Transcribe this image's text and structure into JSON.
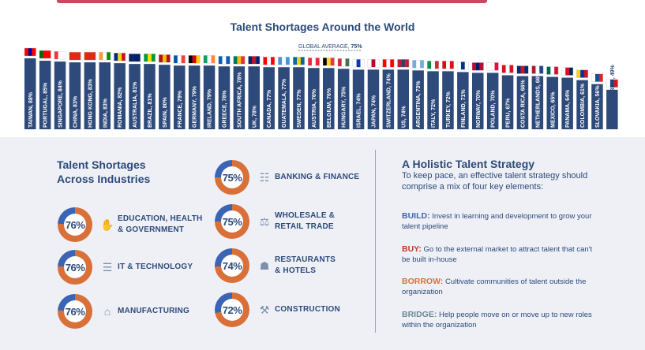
{
  "chart_data": {
    "type": "bar",
    "title": "Talent Shortages Around the World",
    "global_average": {
      "label": "GLOBAL AVERAGE,",
      "value_label": "75%",
      "value": 75
    },
    "ylim": [
      0,
      100
    ],
    "categories": [
      "TAIWAN",
      "PORTUGAL",
      "SINGAPORE",
      "CHINA",
      "HONG KONG",
      "INDIA",
      "ROMANIA",
      "AUSTRALIA",
      "BRAZIL",
      "SPAIN",
      "FRANCE",
      "GERMANY",
      "IRELAND",
      "GREECE",
      "SOUTH AFRICA",
      "UK",
      "CANADA",
      "GUATEMALA",
      "SWEDEN",
      "AUSTRIA",
      "BELGIUM",
      "HUNGARY",
      "ISRAEL",
      "JAPAN",
      "SWITZERLAND",
      "US",
      "ARGENTINA",
      "ITALY",
      "TURKEY",
      "FINLAND",
      "NORWAY",
      "POLAND",
      "PERU",
      "COSTA RICA",
      "NETHERLANDS",
      "MEXICO",
      "PANAMA",
      "COLOMBIA",
      "SLOVAKIA",
      "CZECH REPUBLIC"
    ],
    "labels": [
      "TAIWAN, 88%",
      "PORTUGAL, 85%",
      "SINGAPORE, 84%",
      "CHINA, 83%",
      "HONG KONG, 83%",
      "INDIA, 83%",
      "ROMANIA, 82%",
      "AUSTRALIA, 81%",
      "BRAZIL, 81%",
      "SPAIN, 80%",
      "FRANCE, 79%",
      "GERMANY, 79%",
      "IRELAND, 79%",
      "GREECE, 78%",
      "SOUTH AFRICA, 78%",
      "UK, 78%",
      "CANADA, 77%",
      "GUATEMALA, 77%",
      "SWEDEN, 77%",
      "AUSTRIA, 76%",
      "BELGIUM, 76%",
      "HUNGARY, 75%",
      "ISRAEL, 74%",
      "JAPAN, 74%",
      "SWITZERLAND, 74%",
      "US, 74%",
      "ARGENTINA, 73%",
      "ITALY, 72%",
      "TURKEY, 72%",
      "FINLAND, 71%",
      "NORWAY, 70%",
      "POLAND, 70%",
      "PERU, 67%",
      "COSTA RICA, 66%",
      "NETHERLANDS, 66%",
      "MEXICO, 65%",
      "PANAMA, 64%",
      "COLOMBIA, 61%",
      "SLOVAKIA, 56%",
      "CZECH REPUBLIC, 49%"
    ],
    "values": [
      88,
      85,
      84,
      83,
      83,
      83,
      82,
      81,
      81,
      80,
      79,
      79,
      79,
      78,
      78,
      78,
      77,
      77,
      77,
      76,
      76,
      75,
      74,
      74,
      74,
      74,
      73,
      72,
      72,
      71,
      70,
      70,
      67,
      66,
      66,
      65,
      64,
      61,
      56,
      49
    ],
    "bar_color": "#2d4a7a",
    "flags": [
      [
        "#fe0000",
        "#000095",
        "#fe0000"
      ],
      [
        "#006600",
        "#ff0000",
        "#ff0000"
      ],
      [
        "#ef3340",
        "#ffffff",
        "#ffffff"
      ],
      [
        "#de2910",
        "#de2910",
        "#de2910"
      ],
      [
        "#de2910",
        "#de2910",
        "#de2910"
      ],
      [
        "#ff9933",
        "#ffffff",
        "#138808"
      ],
      [
        "#002b7f",
        "#fcd116",
        "#ce1126"
      ],
      [
        "#012169",
        "#012169",
        "#012169"
      ],
      [
        "#009c3b",
        "#ffdf00",
        "#009c3b"
      ],
      [
        "#aa151b",
        "#f1bf00",
        "#aa151b"
      ],
      [
        "#0055a4",
        "#ffffff",
        "#ef4135"
      ],
      [
        "#000000",
        "#dd0000",
        "#ffce00"
      ],
      [
        "#169b62",
        "#ffffff",
        "#ff883e"
      ],
      [
        "#0d5eaf",
        "#ffffff",
        "#0d5eaf"
      ],
      [
        "#007a4d",
        "#ffb612",
        "#de3831"
      ],
      [
        "#012169",
        "#c8102e",
        "#012169"
      ],
      [
        "#ff0000",
        "#ffffff",
        "#ff0000"
      ],
      [
        "#4997d0",
        "#ffffff",
        "#4997d0"
      ],
      [
        "#006aa7",
        "#fecc00",
        "#006aa7"
      ],
      [
        "#ed2939",
        "#ffffff",
        "#ed2939"
      ],
      [
        "#000000",
        "#fdda24",
        "#ef3340"
      ],
      [
        "#ce2939",
        "#ffffff",
        "#477050"
      ],
      [
        "#ffffff",
        "#0038b8",
        "#ffffff"
      ],
      [
        "#ffffff",
        "#bc002d",
        "#ffffff"
      ],
      [
        "#ff0000",
        "#ffffff",
        "#ff0000"
      ],
      [
        "#b22234",
        "#3c3b6e",
        "#b22234"
      ],
      [
        "#74acdf",
        "#ffffff",
        "#74acdf"
      ],
      [
        "#009246",
        "#ffffff",
        "#ce2b37"
      ],
      [
        "#e30a17",
        "#ffffff",
        "#e30a17"
      ],
      [
        "#ffffff",
        "#003580",
        "#ffffff"
      ],
      [
        "#ba0c2f",
        "#00205b",
        "#ba0c2f"
      ],
      [
        "#ffffff",
        "#ffffff",
        "#dc143c"
      ],
      [
        "#d91023",
        "#ffffff",
        "#d91023"
      ],
      [
        "#002b7f",
        "#ce1126",
        "#002b7f"
      ],
      [
        "#ae1c28",
        "#ffffff",
        "#21468b"
      ],
      [
        "#006847",
        "#ffffff",
        "#ce1126"
      ],
      [
        "#ffffff",
        "#da121a",
        "#072357"
      ],
      [
        "#fcd116",
        "#003893",
        "#ce1126"
      ],
      [
        "#ffffff",
        "#0b4ea2",
        "#ee1c25"
      ],
      [
        "#ffffff",
        "#11457e",
        "#d7141a"
      ]
    ]
  },
  "industries": {
    "title_line1": "Talent Shortages",
    "title_line2": "Across Industries",
    "items": [
      {
        "value": 76,
        "label": "76%",
        "line1": "EDUCATION, HEALTH",
        "line2": "& GOVERNMENT",
        "icon": "hands-icon"
      },
      {
        "value": 76,
        "label": "76%",
        "line1": "IT & TECHNOLOGY",
        "line2": "",
        "icon": "chip-icon"
      },
      {
        "value": 76,
        "label": "76%",
        "line1": "MANUFACTURING",
        "line2": "",
        "icon": "factory-icon"
      },
      {
        "value": 75,
        "label": "75%",
        "line1": "BANKING & FINANCE",
        "line2": "",
        "icon": "bank-chart-icon"
      },
      {
        "value": 75,
        "label": "75%",
        "line1": "WHOLESALE &",
        "line2": "RETAIL TRADE",
        "icon": "cart-icon"
      },
      {
        "value": 74,
        "label": "74%",
        "line1": "RESTAURANTS",
        "line2": "& HOTELS",
        "icon": "hotel-icon"
      },
      {
        "value": 72,
        "label": "72%",
        "line1": "CONSTRUCTION",
        "line2": "",
        "icon": "tools-icon"
      }
    ],
    "ring_colors": {
      "orange": "#d9703a",
      "blue": "#3c64b4"
    }
  },
  "strategy": {
    "title": "A Holistic Talent Strategy",
    "intro": "To keep pace, an effective talent strategy should comprise a mix of four key elements:",
    "items": [
      {
        "key": "BUILD:",
        "text": "Invest in learning and development to grow your talent pipeline",
        "color": "#3c64b4"
      },
      {
        "key": "BUY:",
        "text": "Go to the external market to attract talent that can't be built in-house",
        "color": "#c0392b"
      },
      {
        "key": "BORROW:",
        "text": "Cultivate communities of talent outside the organization",
        "color": "#d9703a"
      },
      {
        "key": "BRIDGE:",
        "text": "Help people move on or move up to new roles within the organization",
        "color": "#6c8a94"
      }
    ]
  }
}
